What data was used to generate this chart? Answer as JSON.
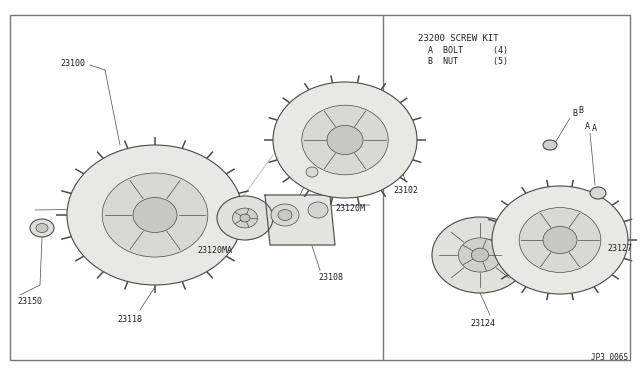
{
  "bg_color": "#ffffff",
  "line_color": "#4a4a4a",
  "fill_color": "#f0f0ec",
  "fill_dark": "#d8d8d4",
  "fill_mid": "#e4e4e0",
  "border_color": "#555555",
  "text_color": "#222222",
  "diagram_code": "JP3 006S",
  "screw_kit_text": "23200 SCREW KIT",
  "screw_kit_line1": "  A  BOLT      (4)",
  "screw_kit_line2": "  B  NUT       (5)",
  "label_23100": "23100",
  "label_23150": "23150",
  "label_23118": "23118",
  "label_23120MA": "23120MA",
  "label_23108": "23108",
  "label_23120M": "23120M",
  "label_23102": "23102",
  "label_23124": "23124",
  "label_23127": "23127",
  "label_A": "A",
  "label_B": "B"
}
